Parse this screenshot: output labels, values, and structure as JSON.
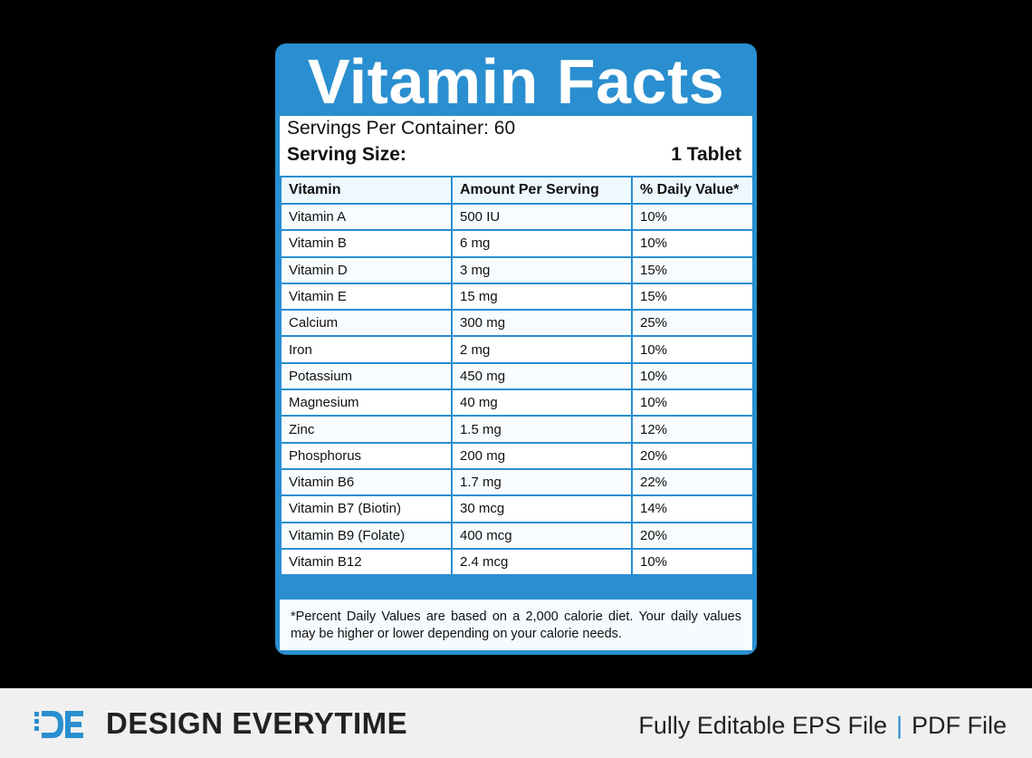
{
  "label": {
    "title": "Vitamin Facts",
    "servings_per_container": "Servings Per Container: 60",
    "serving_size_label": "Serving Size:",
    "serving_size_value": "1 Tablet",
    "columns": [
      "Vitamin",
      "Amount Per Serving",
      "% Daily Value*"
    ],
    "rows": [
      {
        "vitamin": "Vitamin A",
        "amount": "500 IU",
        "dv": "10%"
      },
      {
        "vitamin": "Vitamin B",
        "amount": "6 mg",
        "dv": "10%"
      },
      {
        "vitamin": "Vitamin D",
        "amount": "3 mg",
        "dv": "15%"
      },
      {
        "vitamin": "Vitamin E",
        "amount": "15 mg",
        "dv": "15%"
      },
      {
        "vitamin": "Calcium",
        "amount": "300 mg",
        "dv": "25%"
      },
      {
        "vitamin": "Iron",
        "amount": "2 mg",
        "dv": "10%"
      },
      {
        "vitamin": "Potassium",
        "amount": "450 mg",
        "dv": "10%"
      },
      {
        "vitamin": "Magnesium",
        "amount": "40 mg",
        "dv": "10%"
      },
      {
        "vitamin": "Zinc",
        "amount": "1.5 mg",
        "dv": "12%"
      },
      {
        "vitamin": "Phosphorus",
        "amount": "200 mg",
        "dv": "20%"
      },
      {
        "vitamin": "Vitamin B6",
        "amount": "1.7 mg",
        "dv": "22%"
      },
      {
        "vitamin": "Vitamin B7 (Biotin)",
        "amount": "30 mcg",
        "dv": "14%"
      },
      {
        "vitamin": "Vitamin B9 (Folate)",
        "amount": "400 mcg",
        "dv": "20%"
      },
      {
        "vitamin": "Vitamin B12",
        "amount": "2.4 mcg",
        "dv": "10%"
      }
    ],
    "footnote": "*Percent Daily Values are based on a 2,000 calorie diet. Your daily values may be higher or lower depending on your calorie needs.",
    "accent_color": "#2a8fd0"
  },
  "footer": {
    "logo_icon": "design-everytime-logo",
    "brand": "DESIGN EVERYTIME",
    "tagline_left": "Fully Editable EPS File",
    "tagline_sep": "|",
    "tagline_right": "PDF File"
  }
}
